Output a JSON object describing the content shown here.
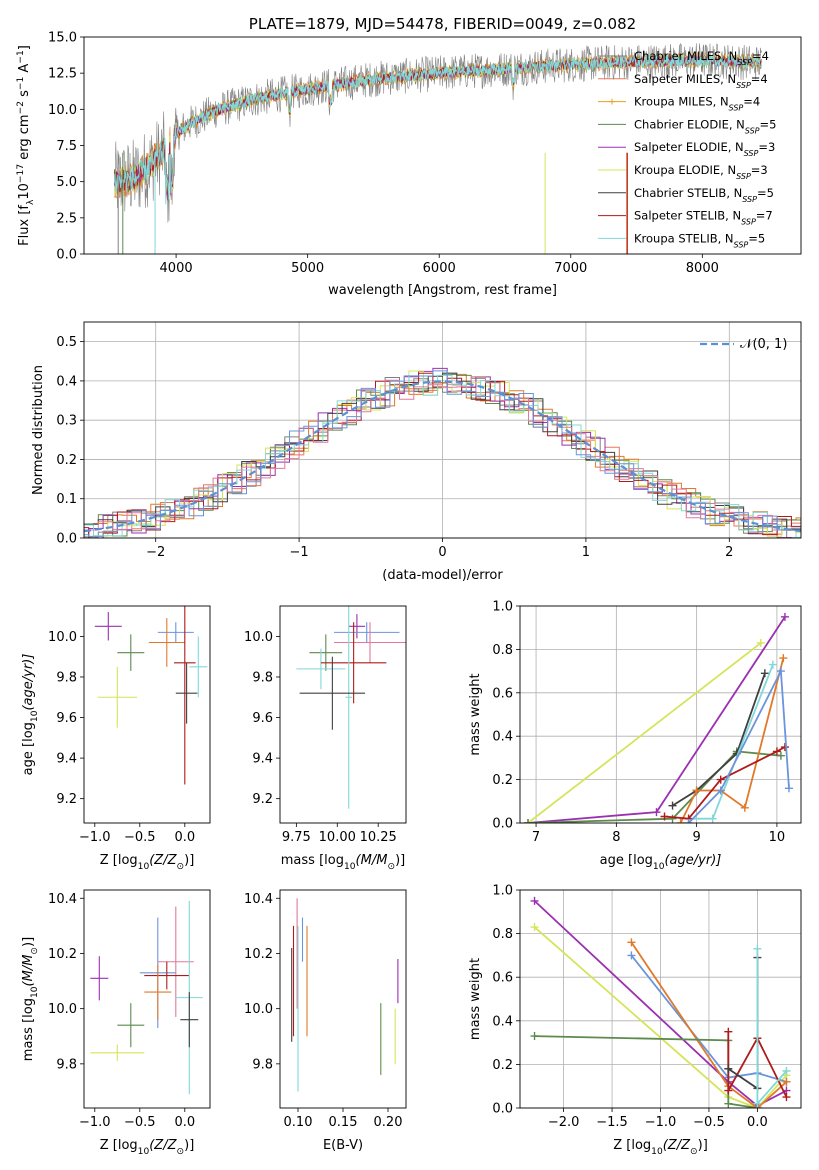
{
  "chart_data": [
    {
      "id": "spectrum",
      "type": "line",
      "title": "PLATE=1879, MJD=54478, FIBERID=0049, z=0.082",
      "xlabel": "wavelength [Angstrom, rest frame]",
      "ylabel_parts": [
        "Flux [f",
        "λ",
        "10",
        "−17",
        " erg cm",
        "−2",
        " s",
        "−1",
        " A",
        "−1",
        "]"
      ],
      "xlim": [
        3300,
        8750
      ],
      "ylim": [
        0,
        15
      ],
      "xticks": [
        4000,
        5000,
        6000,
        7000,
        8000
      ],
      "xtick_labels": [
        "4000",
        "5000",
        "6000",
        "7000",
        "8000"
      ],
      "yticks": [
        0,
        2.5,
        5,
        7.5,
        10,
        12.5,
        15
      ],
      "ytick_labels": [
        "0.0",
        "2.5",
        "5.0",
        "7.5",
        "10.0",
        "12.5",
        "15.0"
      ],
      "grid": false,
      "legend_position": "right",
      "continuum_x": [
        3550,
        3700,
        3900,
        4000,
        4100,
        4300,
        4600,
        5000,
        5500,
        6000,
        6500,
        7000,
        7500,
        8000,
        8500
      ],
      "continuum_y": [
        5.0,
        5.3,
        7.0,
        8.3,
        9.0,
        9.9,
        10.7,
        11.4,
        12.1,
        12.5,
        12.8,
        13.1,
        13.3,
        13.4,
        13.2
      ],
      "series": [
        {
          "name": "Chabrier MILES",
          "n": "4",
          "color": "#808080"
        },
        {
          "name": "Salpeter MILES",
          "n": "4",
          "color": "#e8785a"
        },
        {
          "name": "Kroupa MILES",
          "n": "4",
          "color": "#e8a31f"
        },
        {
          "name": "Chabrier ELODIE",
          "n": "5",
          "color": "#5d8a4d"
        },
        {
          "name": "Salpeter ELODIE",
          "n": "3",
          "color": "#9b30b0"
        },
        {
          "name": "Kroupa ELODIE",
          "n": "3",
          "color": "#d6e45a"
        },
        {
          "name": "Chabrier STELIB",
          "n": "5",
          "color": "#404040"
        },
        {
          "name": "Salpeter STELIB",
          "n": "7",
          "color": "#b01a1a"
        },
        {
          "name": "Kroupa STELIB",
          "n": "5",
          "color": "#80d8d8"
        }
      ]
    },
    {
      "id": "residuals",
      "type": "line",
      "xlabel": "(data-model)/error",
      "ylabel": "Normed distribution",
      "xlim": [
        -2.5,
        2.5
      ],
      "ylim": [
        0,
        0.55
      ],
      "xticks": [
        -2,
        -1,
        0,
        1,
        2
      ],
      "xtick_labels": [
        "−2",
        "−1",
        "0",
        "1",
        "2"
      ],
      "yticks": [
        0,
        0.1,
        0.2,
        0.3,
        0.4,
        0.5
      ],
      "ytick_labels": [
        "0.0",
        "0.1",
        "0.2",
        "0.3",
        "0.4",
        "0.5"
      ],
      "grid": true,
      "legend": "𝒩(0, 1)",
      "legend_position": "top-right",
      "gaussian": {
        "mu": 0,
        "sigma": 1,
        "color": "#5b8fd6"
      },
      "hist_colors": [
        "#808080",
        "#e8785a",
        "#e07a2a",
        "#5d8a4d",
        "#9b30b0",
        "#d6e45a",
        "#404040",
        "#b01a1a",
        "#80d8d8",
        "#e07a9a",
        "#6a95dc"
      ]
    },
    {
      "id": "age-vs-Z",
      "type": "scatter",
      "xlabel_parts": [
        "Z [log",
        "10",
        "(Z/Z",
        "⊙",
        ")]"
      ],
      "ylabel_parts": [
        "age  [log",
        "10",
        "(age/yr)]"
      ],
      "xlim": [
        -1.12,
        0.28
      ],
      "ylim": [
        9.08,
        10.15
      ],
      "xticks": [
        -1,
        -0.5,
        0
      ],
      "xtick_labels": [
        "−1.0",
        "−0.5",
        "0.0"
      ],
      "yticks": [
        9.2,
        9.4,
        9.6,
        9.8,
        10.0
      ],
      "ytick_labels": [
        "9.2",
        "9.4",
        "9.6",
        "9.8",
        "10.0"
      ],
      "points": [
        {
          "x": -0.85,
          "xe": 0.15,
          "y": 10.05,
          "ye": 0.07,
          "color": "#9b30b0"
        },
        {
          "x": -0.1,
          "xe": 0.2,
          "y": 10.02,
          "ye": 0.05,
          "color": "#6a95dc"
        },
        {
          "x": -0.2,
          "xe": 0.2,
          "y": 9.97,
          "ye": 0.12,
          "color": "#e07a2a"
        },
        {
          "x": -0.6,
          "xe": 0.15,
          "y": 9.92,
          "ye": 0.09,
          "color": "#5d8a4d"
        },
        {
          "x": 0.15,
          "xe": 0.1,
          "y": 9.85,
          "ye": 0.15,
          "color": "#80d8d8"
        },
        {
          "x": 0.0,
          "xe": 0.12,
          "y": 9.87,
          "ye": 0.6,
          "color": "#b01a1a"
        },
        {
          "x": -0.75,
          "xe": 0.22,
          "y": 9.7,
          "ye": 0.15,
          "color": "#d6e45a"
        },
        {
          "x": 0.02,
          "xe": 0.12,
          "y": 9.72,
          "ye": 0.15,
          "color": "#404040"
        }
      ]
    },
    {
      "id": "age-vs-mass",
      "type": "scatter",
      "xlabel_parts": [
        "mass [log",
        "10",
        "(M/M",
        "⊙",
        ")]"
      ],
      "xlim": [
        9.65,
        10.42
      ],
      "ylim": [
        9.08,
        10.15
      ],
      "xticks": [
        9.75,
        10.0,
        10.25
      ],
      "xtick_labels": [
        "9.75",
        "10.00",
        "10.25"
      ],
      "yticks": [
        9.2,
        9.4,
        9.6,
        9.8,
        10.0
      ],
      "ytick_labels": [
        "9.2",
        "9.4",
        "9.6",
        "9.8",
        "10.0"
      ],
      "points": [
        {
          "x": 10.12,
          "xe": 0.05,
          "y": 10.05,
          "ye": 0.06,
          "color": "#9b30b0"
        },
        {
          "x": 10.18,
          "xe": 0.2,
          "y": 10.02,
          "ye": 0.05,
          "color": "#6a95dc"
        },
        {
          "x": 10.2,
          "xe": 0.22,
          "y": 9.97,
          "ye": 0.1,
          "color": "#e07a9a"
        },
        {
          "x": 9.93,
          "xe": 0.1,
          "y": 9.92,
          "ye": 0.09,
          "color": "#5d8a4d"
        },
        {
          "x": 9.9,
          "xe": 0.15,
          "y": 9.84,
          "ye": 0.1,
          "color": "#80d8d8"
        },
        {
          "x": 10.1,
          "xe": 0.2,
          "y": 9.87,
          "ye": 0.2,
          "color": "#b01a1a"
        },
        {
          "x": 10.07,
          "xe": 0.02,
          "y": 9.7,
          "ye": 0.55,
          "color": "#80d8d8"
        },
        {
          "x": 9.97,
          "xe": 0.2,
          "y": 9.72,
          "ye": 0.18,
          "color": "#404040"
        }
      ]
    },
    {
      "id": "massweight-vs-age",
      "type": "line",
      "xlabel_parts": [
        "age  [log",
        "10",
        "(age/yr)]"
      ],
      "ylabel": "mass weight",
      "xlim": [
        6.8,
        10.3
      ],
      "ylim": [
        0,
        1
      ],
      "xticks": [
        7,
        8,
        9,
        10
      ],
      "xtick_labels": [
        "7",
        "8",
        "9",
        "10"
      ],
      "yticks": [
        0,
        0.2,
        0.4,
        0.6,
        0.8,
        1.0
      ],
      "ytick_labels": [
        "0.0",
        "0.2",
        "0.4",
        "0.6",
        "0.8",
        "1.0"
      ],
      "grid": true,
      "series": [
        {
          "color": "#9b30b0",
          "x": [
            6.9,
            8.5,
            10.1
          ],
          "y": [
            0.0,
            0.05,
            0.95
          ]
        },
        {
          "color": "#d6e45a",
          "x": [
            6.9,
            9.8
          ],
          "y": [
            0.0,
            0.83
          ]
        },
        {
          "color": "#5d8a4d",
          "x": [
            6.9,
            8.7,
            9.5,
            10.05
          ],
          "y": [
            0.0,
            0.02,
            0.33,
            0.31
          ]
        },
        {
          "color": "#404040",
          "x": [
            8.7,
            9.0,
            9.5,
            9.85
          ],
          "y": [
            0.08,
            0.15,
            0.32,
            0.69
          ]
        },
        {
          "color": "#80d8d8",
          "x": [
            8.9,
            9.2,
            9.95
          ],
          "y": [
            0.02,
            0.02,
            0.73
          ]
        },
        {
          "color": "#e07a2a",
          "x": [
            8.8,
            9.0,
            9.3,
            9.6,
            10.08
          ],
          "y": [
            0.0,
            0.15,
            0.15,
            0.07,
            0.76
          ]
        },
        {
          "color": "#b01a1a",
          "x": [
            8.6,
            8.9,
            9.3,
            10.0,
            10.1
          ],
          "y": [
            0.03,
            0.02,
            0.2,
            0.33,
            0.35
          ]
        },
        {
          "color": "#6a95dc",
          "x": [
            8.9,
            9.3,
            10.05,
            10.15
          ],
          "y": [
            0.0,
            0.15,
            0.7,
            0.16
          ]
        }
      ]
    },
    {
      "id": "mass-vs-Z",
      "type": "scatter",
      "xlabel_parts": [
        "Z [log",
        "10",
        "(Z/Z",
        "⊙",
        ")]"
      ],
      "ylabel_parts": [
        "mass [log",
        "10",
        "(M/M",
        "⊙",
        ")]"
      ],
      "xlim": [
        -1.12,
        0.28
      ],
      "ylim": [
        9.64,
        10.43
      ],
      "xticks": [
        -1,
        -0.5,
        0
      ],
      "xtick_labels": [
        "−1.0",
        "−0.5",
        "0.0"
      ],
      "yticks": [
        9.8,
        10.0,
        10.2,
        10.4
      ],
      "ytick_labels": [
        "9.8",
        "10.0",
        "10.2",
        "10.4"
      ],
      "points": [
        {
          "x": -0.95,
          "xe": 0.1,
          "y": 10.11,
          "ye": 0.08,
          "color": "#9b30b0"
        },
        {
          "x": -0.3,
          "xe": 0.2,
          "y": 10.13,
          "ye": 0.2,
          "color": "#6a95dc"
        },
        {
          "x": -0.1,
          "xe": 0.2,
          "y": 10.17,
          "ye": 0.2,
          "color": "#e07a9a"
        },
        {
          "x": -0.2,
          "xe": 0.25,
          "y": 10.12,
          "ye": 0.05,
          "color": "#b01a1a"
        },
        {
          "x": -0.3,
          "xe": 0.15,
          "y": 10.06,
          "ye": 0.1,
          "color": "#e07a2a"
        },
        {
          "x": -0.6,
          "xe": 0.15,
          "y": 9.94,
          "ye": 0.08,
          "color": "#5d8a4d"
        },
        {
          "x": 0.05,
          "xe": 0.15,
          "y": 10.04,
          "ye": 0.35,
          "color": "#80d8d8"
        },
        {
          "x": -0.75,
          "xe": 0.3,
          "y": 9.84,
          "ye": 0.03,
          "color": "#d6e45a"
        },
        {
          "x": 0.05,
          "xe": 0.1,
          "y": 9.96,
          "ye": 0.1,
          "color": "#404040"
        }
      ]
    },
    {
      "id": "mass-vs-EBV",
      "type": "scatter",
      "xlabel": "E(B-V)",
      "xlim": [
        0.08,
        0.22
      ],
      "ylim": [
        9.64,
        10.43
      ],
      "xticks": [
        0.1,
        0.15,
        0.2
      ],
      "xtick_labels": [
        "0.10",
        "0.15",
        "0.20"
      ],
      "yticks": [
        9.8,
        10.0,
        10.2,
        10.4
      ],
      "ytick_labels": [
        "9.8",
        "10.0",
        "10.2",
        "10.4"
      ],
      "points": [
        {
          "x": 0.093,
          "y": 10.05,
          "ye": 0.17,
          "color": "#404040"
        },
        {
          "x": 0.095,
          "y": 10.1,
          "ye": 0.2,
          "color": "#b01a1a"
        },
        {
          "x": 0.099,
          "y": 10.2,
          "ye": 0.2,
          "color": "#e07a9a"
        },
        {
          "x": 0.1,
          "y": 10.0,
          "ye": 0.3,
          "color": "#80d8d8"
        },
        {
          "x": 0.105,
          "y": 10.25,
          "ye": 0.08,
          "color": "#6a95dc"
        },
        {
          "x": 0.11,
          "y": 10.1,
          "ye": 0.2,
          "color": "#e07a2a"
        },
        {
          "x": 0.192,
          "y": 9.89,
          "ye": 0.13,
          "color": "#5d8a4d"
        },
        {
          "x": 0.208,
          "y": 9.9,
          "ye": 0.1,
          "color": "#d6e45a"
        },
        {
          "x": 0.211,
          "y": 10.1,
          "ye": 0.08,
          "color": "#9b30b0"
        }
      ]
    },
    {
      "id": "massweight-vs-Z",
      "type": "line",
      "xlabel_parts": [
        "Z [log",
        "10",
        "(Z/Z",
        "⊙",
        ")]"
      ],
      "ylabel": "mass weight",
      "xlim": [
        -2.45,
        0.45
      ],
      "ylim": [
        0,
        1
      ],
      "xticks": [
        -2,
        -1.5,
        -1,
        -0.5,
        0
      ],
      "xtick_labels": [
        "−2.0",
        "−1.5",
        "−1.0",
        "−0.5",
        "0.0"
      ],
      "yticks": [
        0,
        0.2,
        0.4,
        0.6,
        0.8,
        1.0
      ],
      "ytick_labels": [
        "0.0",
        "0.2",
        "0.4",
        "0.6",
        "0.8",
        "1.0"
      ],
      "grid": true,
      "series": [
        {
          "color": "#9b30b0",
          "x": [
            -2.3,
            -0.3,
            0.0,
            0.3
          ],
          "y": [
            0.95,
            0.12,
            0.01,
            0.08
          ]
        },
        {
          "color": "#d6e45a",
          "x": [
            -2.3,
            -0.3,
            0.0,
            0.3,
            0.3
          ],
          "y": [
            0.83,
            0.05,
            0.0,
            0.15,
            0.17
          ]
        },
        {
          "color": "#6a95dc",
          "x": [
            -1.3,
            -0.3,
            0.0,
            0.3
          ],
          "y": [
            0.7,
            0.14,
            0.16,
            0.12
          ]
        },
        {
          "color": "#e07a2a",
          "x": [
            -1.3,
            -0.3,
            0.0,
            0.3
          ],
          "y": [
            0.76,
            0.1,
            0.0,
            0.12
          ]
        },
        {
          "color": "#5d8a4d",
          "x": [
            -2.3,
            -0.3,
            -0.3,
            0.0
          ],
          "y": [
            0.33,
            0.31,
            0.02,
            0.0
          ]
        },
        {
          "color": "#b01a1a",
          "x": [
            -0.3,
            -0.3,
            0.0,
            0.3
          ],
          "y": [
            0.35,
            0.08,
            0.32,
            0.05
          ]
        },
        {
          "color": "#404040",
          "x": [
            -0.3,
            0.0,
            0.0
          ],
          "y": [
            0.18,
            0.09,
            0.69
          ]
        },
        {
          "color": "#80d8d8",
          "x": [
            0.0,
            0.0,
            0.3
          ],
          "y": [
            0.73,
            0.02,
            0.17
          ]
        }
      ]
    }
  ]
}
